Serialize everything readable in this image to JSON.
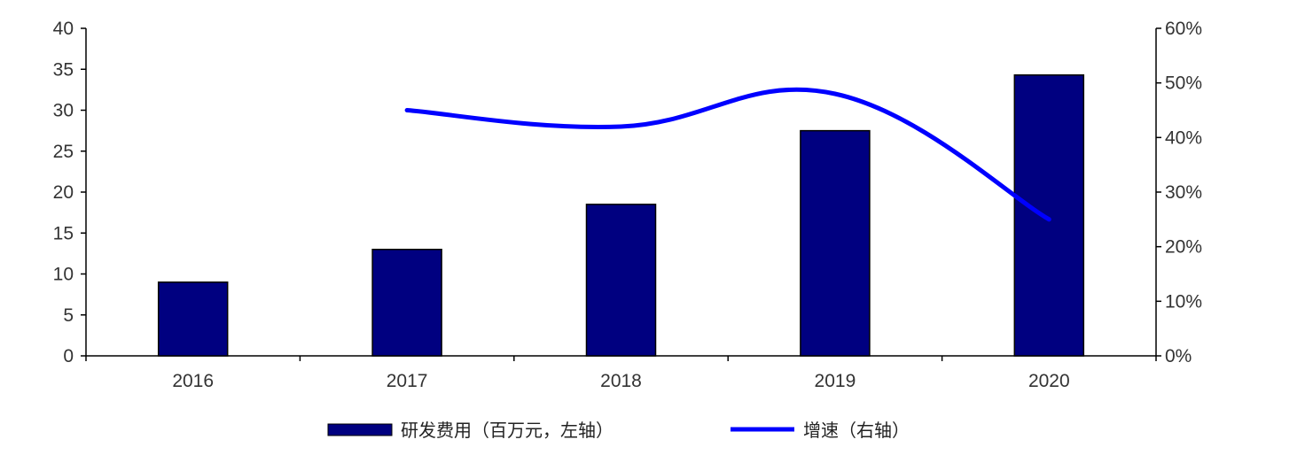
{
  "chart_data": {
    "type": "bar",
    "categories": [
      "2016",
      "2017",
      "2018",
      "2019",
      "2020"
    ],
    "series": [
      {
        "name": "研发费用（百万元，左轴）",
        "type": "bar",
        "axis": "left",
        "color": "#000080",
        "values": [
          9,
          13,
          18.5,
          27.5,
          34.3
        ]
      },
      {
        "name": "增速（右轴）",
        "type": "line",
        "axis": "right",
        "color": "#0000ff",
        "values": [
          null,
          0.45,
          0.42,
          0.48,
          0.25
        ]
      }
    ],
    "y_left": {
      "ylim": [
        0,
        40
      ],
      "ticks": [
        "0",
        "5",
        "10",
        "15",
        "20",
        "25",
        "30",
        "35",
        "40"
      ]
    },
    "y_right": {
      "ylim": [
        0,
        0.6
      ],
      "ticks": [
        "0%",
        "10%",
        "20%",
        "30%",
        "40%",
        "50%",
        "60%"
      ]
    },
    "grid": false,
    "legend_position": "bottom"
  }
}
